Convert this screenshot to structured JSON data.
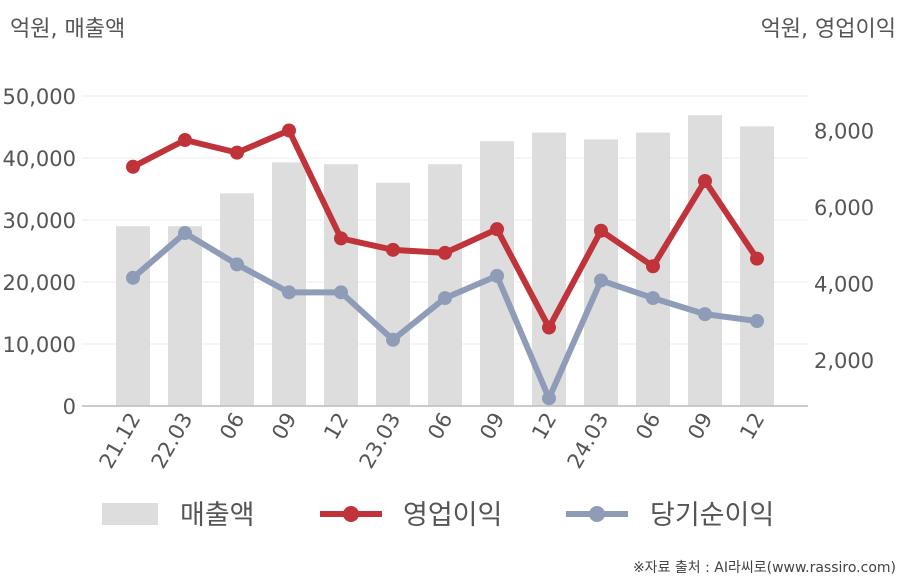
{
  "chart_data": {
    "type": "bar",
    "left_unit_label": "억원, 매출액",
    "right_unit_label": "억원, 영업이익",
    "categories": [
      "21.12",
      "22.03",
      "06",
      "09",
      "12",
      "23.03",
      "06",
      "09",
      "12",
      "24.03",
      "06",
      "09",
      "12"
    ],
    "left_axis": {
      "ticks": [
        "0",
        "10,000",
        "20,000",
        "30,000",
        "40,000",
        "50,000"
      ],
      "range": [
        0,
        50000
      ]
    },
    "right_axis": {
      "ticks": [
        "2,000",
        "4,000",
        "6,000",
        "8,000"
      ],
      "range": [
        800,
        8900
      ]
    },
    "series": [
      {
        "name": "매출액",
        "type": "bar",
        "axis": "left",
        "color": "#dddddd",
        "values": [
          29000,
          29000,
          34300,
          39300,
          39000,
          36000,
          39000,
          42700,
          44100,
          43000,
          44100,
          46900,
          45100
        ]
      },
      {
        "name": "영업이익",
        "type": "line",
        "axis": "right",
        "color": "#c0333a",
        "values": [
          7050,
          7750,
          7420,
          8000,
          5180,
          4880,
          4800,
          5420,
          2850,
          5380,
          4450,
          6680,
          4650
        ]
      },
      {
        "name": "당기순이익",
        "type": "line",
        "axis": "right",
        "color": "#8f9cb8",
        "values": [
          4150,
          5320,
          4500,
          3770,
          3770,
          2530,
          3620,
          4200,
          1000,
          4080,
          3620,
          3200,
          3020
        ]
      }
    ],
    "legend_position": "bottom",
    "grid": true
  },
  "source_note": "※자료 출처 : AI라씨로(www.rassiro.com)"
}
